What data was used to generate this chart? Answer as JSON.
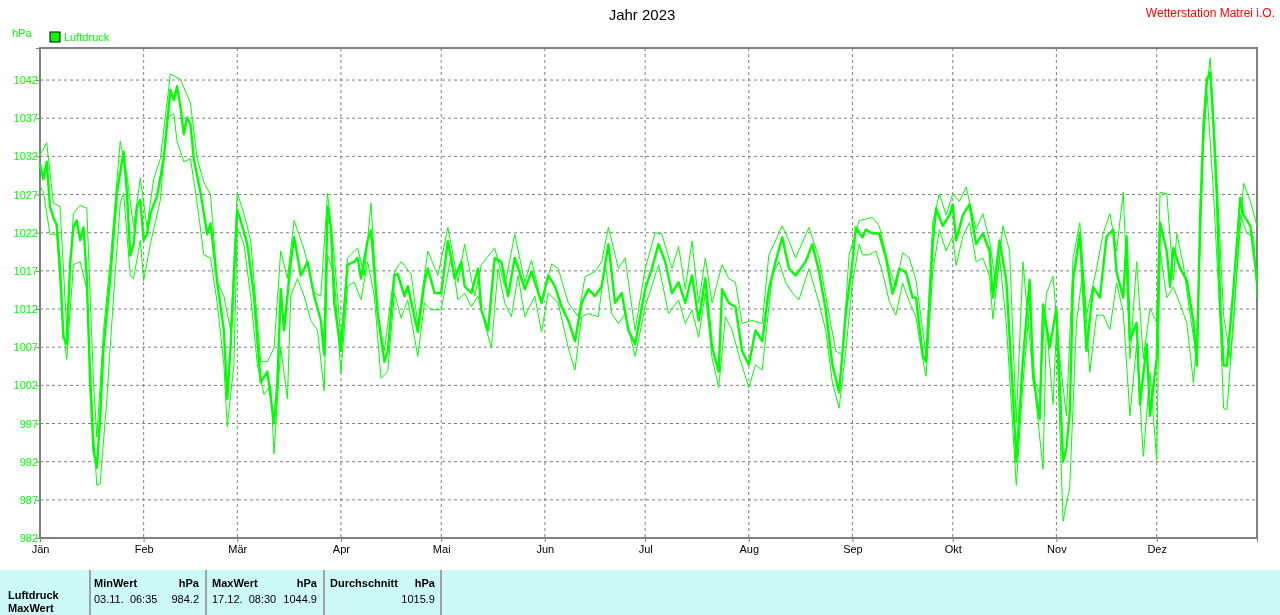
{
  "chart_data": {
    "type": "line",
    "title": "Jahr 2023",
    "ylabel": "hPa",
    "legend": "top left",
    "grid": true,
    "xlim": [
      "2023-01-01",
      "2023-12-31"
    ],
    "xticks": [
      {
        "value": "2023-01-01",
        "label": "Jän"
      },
      {
        "value": "2023-02-01",
        "label": "Feb"
      },
      {
        "value": "2023-03-01",
        "label": "Mär"
      },
      {
        "value": "2023-04-01",
        "label": "Apr"
      },
      {
        "value": "2023-05-01",
        "label": "Mai"
      },
      {
        "value": "2023-06-01",
        "label": "Jun"
      },
      {
        "value": "2023-07-01",
        "label": "Jul"
      },
      {
        "value": "2023-08-01",
        "label": "Aug"
      },
      {
        "value": "2023-09-01",
        "label": "Sep"
      },
      {
        "value": "2023-10-01",
        "label": "Okt"
      },
      {
        "value": "2023-11-01",
        "label": "Nov"
      },
      {
        "value": "2023-12-01",
        "label": "Dez"
      }
    ],
    "ylim": [
      982,
      1046.2
    ],
    "yticks": [
      982,
      987,
      992,
      997,
      1002,
      1007,
      1012,
      1017,
      1022,
      1027,
      1032,
      1037,
      1042
    ],
    "annotations": [
      "Wetterstation Matrei i.O.",
      "Luftdruck",
      "MaxWert",
      "MinWert",
      "hPa",
      "03.11.  06:35",
      "984.2",
      "MaxWert",
      "hPa",
      "17.12.  08:30",
      "1044.9",
      "Durchschnitt",
      "hPa",
      "1015.9"
    ],
    "series": [
      {
        "name": "Luftdruck",
        "color": "#00ff00",
        "x": [
          "2023-01-01",
          "2023-01-02",
          "2023-01-03",
          "2023-01-04",
          "2023-01-05",
          "2023-01-06",
          "2023-01-07",
          "2023-01-08",
          "2023-01-09",
          "2023-01-10",
          "2023-01-11",
          "2023-01-12",
          "2023-01-13",
          "2023-01-14",
          "2023-01-15",
          "2023-01-16",
          "2023-01-17",
          "2023-01-18",
          "2023-01-19",
          "2023-01-20",
          "2023-01-22",
          "2023-01-24",
          "2023-01-26",
          "2023-01-27",
          "2023-01-28",
          "2023-01-29",
          "2023-01-30",
          "2023-01-31",
          "2023-02-01",
          "2023-02-02",
          "2023-02-03",
          "2023-02-05",
          "2023-02-07",
          "2023-02-09",
          "2023-02-10",
          "2023-02-11",
          "2023-02-12",
          "2023-02-13",
          "2023-02-14",
          "2023-02-15",
          "2023-02-16",
          "2023-02-18",
          "2023-02-20",
          "2023-02-21",
          "2023-02-23",
          "2023-02-25",
          "2023-02-26",
          "2023-02-27",
          "2023-03-01",
          "2023-03-02",
          "2023-03-04",
          "2023-03-06",
          "2023-03-08",
          "2023-03-10",
          "2023-03-12",
          "2023-03-13",
          "2023-03-14",
          "2023-03-15",
          "2023-03-17",
          "2023-03-18",
          "2023-03-20",
          "2023-03-22",
          "2023-03-24",
          "2023-03-26",
          "2023-03-27",
          "2023-03-28",
          "2023-03-29",
          "2023-03-30",
          "2023-04-01",
          "2023-04-03",
          "2023-04-05",
          "2023-04-06",
          "2023-04-07",
          "2023-04-09",
          "2023-04-10",
          "2023-04-12",
          "2023-04-14",
          "2023-04-15",
          "2023-04-17",
          "2023-04-18",
          "2023-04-20",
          "2023-04-21",
          "2023-04-23",
          "2023-04-24",
          "2023-04-26",
          "2023-04-27",
          "2023-04-29",
          "2023-05-01",
          "2023-05-03",
          "2023-05-05",
          "2023-05-07",
          "2023-05-08",
          "2023-05-10",
          "2023-05-12",
          "2023-05-13",
          "2023-05-15",
          "2023-05-17",
          "2023-05-19",
          "2023-05-21",
          "2023-05-23",
          "2023-05-26",
          "2023-05-28",
          "2023-05-31",
          "2023-06-02",
          "2023-06-04",
          "2023-06-06",
          "2023-06-08",
          "2023-06-10",
          "2023-06-12",
          "2023-06-14",
          "2023-06-16",
          "2023-06-18",
          "2023-06-20",
          "2023-06-22",
          "2023-06-24",
          "2023-06-26",
          "2023-06-28",
          "2023-07-01",
          "2023-07-03",
          "2023-07-05",
          "2023-07-07",
          "2023-07-09",
          "2023-07-11",
          "2023-07-13",
          "2023-07-15",
          "2023-07-17",
          "2023-07-19",
          "2023-07-21",
          "2023-07-23",
          "2023-07-24",
          "2023-07-26",
          "2023-07-28",
          "2023-07-30",
          "2023-08-01",
          "2023-08-03",
          "2023-08-05",
          "2023-08-07",
          "2023-08-09",
          "2023-08-11",
          "2023-08-13",
          "2023-08-15",
          "2023-08-18",
          "2023-08-20",
          "2023-08-22",
          "2023-08-24",
          "2023-08-26",
          "2023-08-28",
          "2023-08-30",
          "2023-09-01",
          "2023-09-02",
          "2023-09-04",
          "2023-09-05",
          "2023-09-07",
          "2023-09-09",
          "2023-09-11",
          "2023-09-13",
          "2023-09-15",
          "2023-09-17",
          "2023-09-19",
          "2023-09-20",
          "2023-09-22",
          "2023-09-23",
          "2023-09-25",
          "2023-09-26",
          "2023-09-28",
          "2023-09-30",
          "2023-10-01",
          "2023-10-02",
          "2023-10-04",
          "2023-10-06",
          "2023-10-08",
          "2023-10-10",
          "2023-10-12",
          "2023-10-13",
          "2023-10-15",
          "2023-10-17",
          "2023-10-19",
          "2023-10-20",
          "2023-10-22",
          "2023-10-24",
          "2023-10-25",
          "2023-10-27",
          "2023-10-28",
          "2023-10-30",
          "2023-11-01",
          "2023-11-03",
          "2023-11-04",
          "2023-11-05",
          "2023-11-06",
          "2023-11-08",
          "2023-11-10",
          "2023-11-12",
          "2023-11-14",
          "2023-11-16",
          "2023-11-18",
          "2023-11-19",
          "2023-11-21",
          "2023-11-22",
          "2023-11-23",
          "2023-11-25",
          "2023-11-26",
          "2023-11-28",
          "2023-11-29",
          "2023-12-01",
          "2023-12-02",
          "2023-12-04",
          "2023-12-05",
          "2023-12-06",
          "2023-12-08",
          "2023-12-10",
          "2023-12-12",
          "2023-12-13",
          "2023-12-14",
          "2023-12-15",
          "2023-12-16",
          "2023-12-17",
          "2023-12-18",
          "2023-12-19",
          "2023-12-20",
          "2023-12-21",
          "2023-12-22",
          "2023-12-24",
          "2023-12-26",
          "2023-12-27",
          "2023-12-29",
          "2023-12-31"
        ],
        "values": [
          1031,
          1029,
          1031.3,
          1025.4,
          1024,
          1023,
          1017.3,
          1008.3,
          1007.4,
          1018,
          1022.7,
          1023.6,
          1021,
          1022.7,
          1016,
          1002.4,
          993.4,
          991.2,
          997.9,
          1007,
          1016,
          1027.2,
          1032.6,
          1027.2,
          1019,
          1020.5,
          1025.4,
          1026.3,
          1021,
          1021.8,
          1024.5,
          1026.8,
          1031.7,
          1040.7,
          1039.4,
          1041.2,
          1038.5,
          1034.9,
          1037.1,
          1036.2,
          1031.7,
          1027.2,
          1021.8,
          1023.2,
          1015.5,
          1009.2,
          1000.2,
          1007,
          1025,
          1023.6,
          1020.5,
          1013.7,
          1002.4,
          1003.8,
          997,
          1002.4,
          1014.6,
          1009.2,
          1018.2,
          1021.4,
          1016.4,
          1018.2,
          1013.7,
          1010.5,
          1006,
          1025.4,
          1022.7,
          1012.8,
          1006.5,
          1017.8,
          1018.2,
          1018.7,
          1016,
          1021,
          1022.3,
          1011.4,
          1005.1,
          1006.5,
          1016.4,
          1016.6,
          1013.7,
          1015,
          1011,
          1009,
          1015.5,
          1017.3,
          1014.1,
          1014.1,
          1020.9,
          1016,
          1018.2,
          1015,
          1014.1,
          1017.3,
          1011.9,
          1009.2,
          1018.7,
          1018.2,
          1013.7,
          1018.7,
          1014.6,
          1016.9,
          1012.8,
          1016.4,
          1015,
          1012.3,
          1010.5,
          1007.8,
          1012.8,
          1014.6,
          1013.7,
          1015,
          1020.5,
          1012.8,
          1014.1,
          1009.2,
          1007.4,
          1014.6,
          1017.3,
          1020.5,
          1018.2,
          1014.1,
          1015.5,
          1012.8,
          1016.4,
          1010.5,
          1016,
          1007,
          1003.8,
          1014.6,
          1012.8,
          1012.3,
          1006.5,
          1004.7,
          1009.2,
          1007.8,
          1014.6,
          1018.2,
          1021.4,
          1017.3,
          1016.4,
          1018.2,
          1020.5,
          1016.9,
          1011.9,
          1004.7,
          1001.1,
          1011.4,
          1018.2,
          1022.7,
          1021.4,
          1022.4,
          1021.9,
          1021.9,
          1018.7,
          1014,
          1017.3,
          1016.8,
          1013.5,
          1013.5,
          1006,
          1005.1,
          1020.5,
          1025.2,
          1022.9,
          1024.3,
          1025.7,
          1021,
          1024.3,
          1025.7,
          1020.5,
          1021.9,
          1019.6,
          1013.5,
          1021,
          1015.8,
          1000.9,
          992,
          1005.5,
          1015.8,
          1003.2,
          997.6,
          1012.6,
          1007,
          1012.1,
          992,
          993.8,
          998.5,
          1015.8,
          1021.9,
          1006.5,
          1014.9,
          1013.5,
          1021.5,
          1022.4,
          1016.8,
          1013.5,
          1021.5,
          1007.9,
          1010.2,
          999.5,
          1007.4,
          998,
          1005.5,
          1023.3,
          1019.6,
          1014.9,
          1020,
          1017.3,
          1015.8,
          1010.2,
          1004.6,
          1024.3,
          1036,
          1042.1,
          1043,
          1036,
          1026.6,
          1012.6,
          1004.6,
          1004.6,
          1014.9,
          1026.6,
          1024.3,
          1022.9,
          1015.8
        ]
      },
      {
        "color": "#00ff00",
        "x": [
          "2023-01-01",
          "2023-01-03",
          "2023-01-05",
          "2023-01-07",
          "2023-01-09",
          "2023-01-11",
          "2023-01-13",
          "2023-01-15",
          "2023-01-17",
          "2023-01-18",
          "2023-01-20",
          "2023-01-22",
          "2023-01-25",
          "2023-01-27",
          "2023-01-29",
          "2023-01-31",
          "2023-02-02",
          "2023-02-04",
          "2023-02-06",
          "2023-02-09",
          "2023-02-12",
          "2023-02-15",
          "2023-02-17",
          "2023-02-19",
          "2023-02-21",
          "2023-02-23",
          "2023-02-25",
          "2023-02-27",
          "2023-03-01",
          "2023-03-03",
          "2023-03-05",
          "2023-03-08",
          "2023-03-10",
          "2023-03-12",
          "2023-03-14",
          "2023-03-16",
          "2023-03-18",
          "2023-03-21",
          "2023-03-24",
          "2023-03-26",
          "2023-03-28",
          "2023-03-30",
          "2023-04-01",
          "2023-04-03",
          "2023-04-06",
          "2023-04-08",
          "2023-04-10",
          "2023-04-12",
          "2023-04-14",
          "2023-04-17",
          "2023-04-19",
          "2023-04-22",
          "2023-04-24",
          "2023-04-27",
          "2023-04-30",
          "2023-05-03",
          "2023-05-06",
          "2023-05-08",
          "2023-05-11",
          "2023-05-13",
          "2023-05-17",
          "2023-05-20",
          "2023-05-23",
          "2023-05-26",
          "2023-05-28",
          "2023-05-31",
          "2023-06-03",
          "2023-06-05",
          "2023-06-08",
          "2023-06-11",
          "2023-06-13",
          "2023-06-16",
          "2023-06-18",
          "2023-06-20",
          "2023-06-23",
          "2023-06-25",
          "2023-06-28",
          "2023-07-01",
          "2023-07-04",
          "2023-07-06",
          "2023-07-09",
          "2023-07-11",
          "2023-07-13",
          "2023-07-15",
          "2023-07-17",
          "2023-07-19",
          "2023-07-21",
          "2023-07-24",
          "2023-07-26",
          "2023-07-28",
          "2023-07-30",
          "2023-08-02",
          "2023-08-05",
          "2023-08-07",
          "2023-08-11",
          "2023-08-13",
          "2023-08-15",
          "2023-08-19",
          "2023-08-22",
          "2023-08-24",
          "2023-08-27",
          "2023-08-29",
          "2023-08-31",
          "2023-09-03",
          "2023-09-05",
          "2023-09-07",
          "2023-09-09",
          "2023-09-12",
          "2023-09-14",
          "2023-09-16",
          "2023-09-18",
          "2023-09-20",
          "2023-09-23",
          "2023-09-25",
          "2023-09-27",
          "2023-09-29",
          "2023-10-01",
          "2023-10-03",
          "2023-10-05",
          "2023-10-08",
          "2023-10-10",
          "2023-10-12",
          "2023-10-14",
          "2023-10-16",
          "2023-10-18",
          "2023-10-20",
          "2023-10-22",
          "2023-10-25",
          "2023-10-27",
          "2023-10-29",
          "2023-10-31",
          "2023-11-02",
          "2023-11-04",
          "2023-11-06",
          "2023-11-08",
          "2023-11-10",
          "2023-11-13",
          "2023-11-15",
          "2023-11-17",
          "2023-11-19",
          "2023-11-21",
          "2023-11-23",
          "2023-11-25",
          "2023-11-27",
          "2023-11-29",
          "2023-12-01",
          "2023-12-02",
          "2023-12-04",
          "2023-12-06",
          "2023-12-07",
          "2023-12-09",
          "2023-12-11",
          "2023-12-13",
          "2023-12-15",
          "2023-12-17",
          "2023-12-19",
          "2023-12-21",
          "2023-12-23",
          "2023-12-25",
          "2023-12-27",
          "2023-12-29",
          "2023-12-31"
        ],
        "values": [
          1032.2,
          1033.8,
          1025.9,
          1025.4,
          1009.2,
          1024.5,
          1025.6,
          1025.2,
          1002.4,
          995.2,
          1009.2,
          1018.2,
          1034,
          1029.5,
          1022.7,
          1029.2,
          1022.7,
          1029,
          1031.7,
          1042.8,
          1042.1,
          1039,
          1031.7,
          1028.6,
          1027,
          1015.5,
          1013.7,
          1009.2,
          1027.2,
          1024.5,
          1021,
          1005.1,
          1005.1,
          1006.9,
          1019.6,
          1016,
          1023.6,
          1019.8,
          1014.1,
          1013.7,
          1027.2,
          1019.1,
          1007.8,
          1018.7,
          1020,
          1016.4,
          1025.9,
          1011.4,
          1006.5,
          1016.9,
          1018.2,
          1016.6,
          1010,
          1019.6,
          1016.4,
          1022.7,
          1015.5,
          1020.5,
          1013.7,
          1017.8,
          1020,
          1015,
          1021.8,
          1015.5,
          1018.4,
          1012.8,
          1017.9,
          1017.3,
          1012.8,
          1011,
          1016.2,
          1016.9,
          1018.2,
          1022.7,
          1017.3,
          1018.7,
          1009.2,
          1017.3,
          1022,
          1021.8,
          1017.3,
          1020.2,
          1014.6,
          1020.9,
          1012.8,
          1018.7,
          1012.8,
          1017.8,
          1016,
          1015.5,
          1010.1,
          1010.5,
          1010.1,
          1019.1,
          1022.9,
          1020.9,
          1018.7,
          1022.7,
          1018.7,
          1013.7,
          1006.5,
          1006,
          1019.1,
          1023.6,
          1023.8,
          1024,
          1022.9,
          1017.3,
          1014.9,
          1019.4,
          1018.7,
          1015.8,
          1006,
          1023.3,
          1027.1,
          1024.3,
          1027.1,
          1026.1,
          1028,
          1022.4,
          1024.5,
          1021,
          1014.9,
          1022.9,
          1019.6,
          997.1,
          1018.2,
          1003.2,
          1000.9,
          1014,
          1016.3,
          1005.5,
          998,
          1018.7,
          1023.3,
          1011.2,
          1017.3,
          1021.9,
          1024.5,
          1019.6,
          1027.3,
          1005.5,
          1018.2,
          1005.5,
          1012.1,
          1010.2,
          1027.3,
          1027.1,
          1015.8,
          1021.9,
          1017.7,
          1011.2,
          1005.5,
          1037.4,
          1044.9,
          1029,
          1011.2,
          1005.5,
          1016.8,
          1028.5,
          1026.1,
          1022.9
        ]
      },
      {
        "color": "#00ff00",
        "x": [
          "2023-01-01",
          "2023-01-02",
          "2023-01-04",
          "2023-01-06",
          "2023-01-08",
          "2023-01-09",
          "2023-01-11",
          "2023-01-13",
          "2023-01-15",
          "2023-01-17",
          "2023-01-18",
          "2023-01-19",
          "2023-01-21",
          "2023-01-23",
          "2023-01-25",
          "2023-01-26",
          "2023-01-28",
          "2023-01-29",
          "2023-01-31",
          "2023-02-01",
          "2023-02-03",
          "2023-02-06",
          "2023-02-08",
          "2023-02-10",
          "2023-02-11",
          "2023-02-13",
          "2023-02-15",
          "2023-02-17",
          "2023-02-19",
          "2023-02-21",
          "2023-02-23",
          "2023-02-25",
          "2023-02-26",
          "2023-02-28",
          "2023-03-01",
          "2023-03-03",
          "2023-03-05",
          "2023-03-07",
          "2023-03-09",
          "2023-03-11",
          "2023-03-12",
          "2023-03-14",
          "2023-03-16",
          "2023-03-17",
          "2023-03-19",
          "2023-03-21",
          "2023-03-23",
          "2023-03-25",
          "2023-03-27",
          "2023-03-28",
          "2023-03-30",
          "2023-04-01",
          "2023-04-03",
          "2023-04-05",
          "2023-04-07",
          "2023-04-09",
          "2023-04-11",
          "2023-04-13",
          "2023-04-15",
          "2023-04-17",
          "2023-04-19",
          "2023-04-21",
          "2023-04-24",
          "2023-04-26",
          "2023-04-28",
          "2023-05-01",
          "2023-05-04",
          "2023-05-06",
          "2023-05-08",
          "2023-05-10",
          "2023-05-12",
          "2023-05-14",
          "2023-05-16",
          "2023-05-18",
          "2023-05-20",
          "2023-05-22",
          "2023-05-24",
          "2023-05-26",
          "2023-05-29",
          "2023-05-31",
          "2023-06-02",
          "2023-06-05",
          "2023-06-08",
          "2023-06-10",
          "2023-06-12",
          "2023-06-14",
          "2023-06-17",
          "2023-06-19",
          "2023-06-21",
          "2023-06-23",
          "2023-06-25",
          "2023-06-28",
          "2023-07-01",
          "2023-07-03",
          "2023-07-05",
          "2023-07-08",
          "2023-07-11",
          "2023-07-13",
          "2023-07-15",
          "2023-07-17",
          "2023-07-19",
          "2023-07-21",
          "2023-07-23",
          "2023-07-25",
          "2023-07-27",
          "2023-07-29",
          "2023-08-01",
          "2023-08-03",
          "2023-08-05",
          "2023-08-08",
          "2023-08-10",
          "2023-08-12",
          "2023-08-14",
          "2023-08-16",
          "2023-08-19",
          "2023-08-22",
          "2023-08-24",
          "2023-08-26",
          "2023-08-28",
          "2023-08-30",
          "2023-09-01",
          "2023-09-03",
          "2023-09-04",
          "2023-09-06",
          "2023-09-08",
          "2023-09-10",
          "2023-09-12",
          "2023-09-14",
          "2023-09-16",
          "2023-09-18",
          "2023-09-20",
          "2023-09-22",
          "2023-09-23",
          "2023-09-25",
          "2023-09-27",
          "2023-09-29",
          "2023-10-01",
          "2023-10-02",
          "2023-10-04",
          "2023-10-06",
          "2023-10-08",
          "2023-10-10",
          "2023-10-12",
          "2023-10-13",
          "2023-10-15",
          "2023-10-17",
          "2023-10-19",
          "2023-10-20",
          "2023-10-22",
          "2023-10-24",
          "2023-10-26",
          "2023-10-28",
          "2023-10-29",
          "2023-10-31",
          "2023-11-01",
          "2023-11-03",
          "2023-11-05",
          "2023-11-07",
          "2023-11-09",
          "2023-11-11",
          "2023-11-13",
          "2023-11-15",
          "2023-11-17",
          "2023-11-19",
          "2023-11-21",
          "2023-11-23",
          "2023-11-25",
          "2023-11-27",
          "2023-11-29",
          "2023-12-01",
          "2023-12-02",
          "2023-12-04",
          "2023-12-06",
          "2023-12-08",
          "2023-12-10",
          "2023-12-12",
          "2023-12-13",
          "2023-12-15",
          "2023-12-16",
          "2023-12-18",
          "2023-12-20",
          "2023-12-21",
          "2023-12-22",
          "2023-12-24",
          "2023-12-26",
          "2023-12-28",
          "2023-12-30",
          "2023-12-31"
        ],
        "values": [
          1028.1,
          1027.4,
          1021.8,
          1021.8,
          1009.2,
          1005.4,
          1017.8,
          1018.2,
          1014.6,
          995.7,
          988.9,
          989.1,
          1000.2,
          1013.7,
          1025.9,
          1027.2,
          1016.4,
          1016,
          1021,
          1015.7,
          1020.5,
          1026.3,
          1037.1,
          1037.6,
          1034,
          1031.3,
          1031.7,
          1025.9,
          1019.1,
          1018.7,
          1012.8,
          1004.7,
          996.6,
          1004.7,
          1022.7,
          1020.5,
          1013.7,
          1004.7,
          1000.8,
          1002,
          993,
          1006.9,
          1000.2,
          1013.7,
          1016,
          1013.7,
          1010.5,
          1009.2,
          1001.3,
          1019.1,
          1016.4,
          1003.6,
          1015,
          1015.5,
          1013.2,
          1018.2,
          1013.7,
          1002.9,
          1003.8,
          1014.1,
          1010.8,
          1013.2,
          1005.8,
          1012.8,
          1011.9,
          1011.9,
          1019.1,
          1013.2,
          1014.1,
          1012.3,
          1013.7,
          1010.1,
          1006.9,
          1017.3,
          1012.8,
          1011,
          1016.4,
          1011,
          1013.7,
          1009,
          1014.1,
          1012.8,
          1006.9,
          1004,
          1011,
          1011.4,
          1011,
          1018.2,
          1011.4,
          1010.1,
          1011.4,
          1005.8,
          1012.3,
          1015,
          1017.8,
          1011.4,
          1013.2,
          1010.1,
          1011.9,
          1008.3,
          1014.1,
          1005.6,
          1001.7,
          1011,
          1009.2,
          1006,
          1001.7,
          1004.7,
          1004,
          1016.4,
          1018.2,
          1015.5,
          1014.1,
          1013.2,
          1017.3,
          1012.8,
          1009.2,
          1002.4,
          999,
          1006.5,
          1015.5,
          1020.5,
          1019.1,
          1019.1,
          1019.6,
          1016.8,
          1013,
          1011.2,
          1015.4,
          1013,
          1010.9,
          1005.5,
          1003.2,
          1016.8,
          1022.4,
          1019.6,
          1021.5,
          1017.7,
          1021.5,
          1023.3,
          1018.2,
          1018.7,
          1016.3,
          1010.7,
          1018.7,
          1010.2,
          996.2,
          988.9,
          1002.3,
          1012.6,
          999.5,
          991,
          1010.2,
          999.5,
          1009.3,
          984.2,
          988.7,
          1010.2,
          1017.3,
          1003.7,
          1011.2,
          1011.2,
          1009.3,
          1015.4,
          1011.6,
          998,
          1007.4,
          992.7,
          1003.7,
          992.2,
          1019.6,
          1013.5,
          1014.9,
          1012.6,
          1010.2,
          1002.3,
          1007.9,
          1033.6,
          1040.7,
          1027.1,
          1010.2,
          999,
          998.8,
          1010.2,
          1024.3,
          1021.9,
          1021.5,
          1013.5
        ]
      }
    ]
  }
}
